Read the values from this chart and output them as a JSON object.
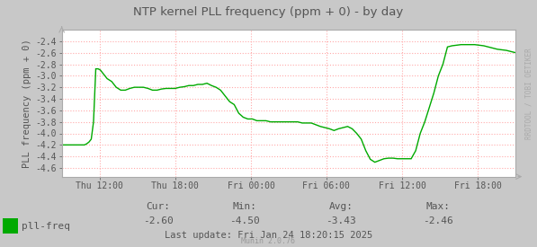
{
  "title": "NTP kernel PLL frequency (ppm + 0) - by day",
  "ylabel": "PLL frequency (ppm + 0)",
  "fig_bg_color": "#c8c8c8",
  "plot_bg_color": "#ffffff",
  "grid_color": "#ffaaaa",
  "line_color": "#00aa00",
  "text_color": "#555555",
  "tick_color": "#555555",
  "watermark_color": "#aaaaaa",
  "ylim": [
    -4.75,
    -2.2
  ],
  "yticks": [
    -4.6,
    -4.4,
    -4.2,
    -4.0,
    -3.8,
    -3.6,
    -3.4,
    -3.2,
    -3.0,
    -2.8,
    -2.6,
    -2.4
  ],
  "xtick_labels": [
    "Thu 12:00",
    "Thu 18:00",
    "Fri 00:00",
    "Fri 06:00",
    "Fri 12:00",
    "Fri 18:00"
  ],
  "xtick_positions": [
    0.083,
    0.25,
    0.417,
    0.583,
    0.75,
    0.917
  ],
  "legend_label": "pll-freq",
  "legend_color": "#00aa00",
  "cur_label": "Cur:",
  "cur_val": "-2.60",
  "min_label": "Min:",
  "min_val": "-4.50",
  "avg_label": "Avg:",
  "avg_val": "-3.43",
  "max_label": "Max:",
  "max_val": "-2.46",
  "last_update": "Last update: Fri Jan 24 18:20:15 2025",
  "munin_version": "Munin 2.0.76",
  "watermark": "RRDTOOL / TOBI OETIKER",
  "x_data": [
    0.0,
    0.005,
    0.01,
    0.015,
    0.02,
    0.025,
    0.03,
    0.035,
    0.04,
    0.045,
    0.05,
    0.055,
    0.06,
    0.065,
    0.07,
    0.075,
    0.08,
    0.085,
    0.09,
    0.095,
    0.1,
    0.11,
    0.12,
    0.13,
    0.14,
    0.15,
    0.16,
    0.17,
    0.18,
    0.19,
    0.2,
    0.21,
    0.22,
    0.23,
    0.24,
    0.25,
    0.26,
    0.27,
    0.28,
    0.29,
    0.3,
    0.31,
    0.32,
    0.33,
    0.34,
    0.35,
    0.36,
    0.37,
    0.38,
    0.39,
    0.4,
    0.41,
    0.42,
    0.43,
    0.44,
    0.45,
    0.46,
    0.47,
    0.48,
    0.49,
    0.5,
    0.51,
    0.52,
    0.53,
    0.54,
    0.55,
    0.56,
    0.57,
    0.58,
    0.59,
    0.6,
    0.61,
    0.62,
    0.63,
    0.64,
    0.65,
    0.66,
    0.67,
    0.68,
    0.69,
    0.7,
    0.71,
    0.72,
    0.73,
    0.74,
    0.75,
    0.76,
    0.77,
    0.78,
    0.79,
    0.8,
    0.81,
    0.82,
    0.83,
    0.84,
    0.85,
    0.86,
    0.87,
    0.88,
    0.89,
    0.9,
    0.91,
    0.92,
    0.93,
    0.94,
    0.95,
    0.96,
    0.97,
    0.98,
    0.99,
    1.0
  ],
  "y_data": [
    -4.2,
    -4.2,
    -4.2,
    -4.2,
    -4.2,
    -4.2,
    -4.2,
    -4.2,
    -4.2,
    -4.2,
    -4.2,
    -4.18,
    -4.15,
    -4.1,
    -3.8,
    -2.88,
    -2.88,
    -2.9,
    -2.95,
    -3.0,
    -3.05,
    -3.1,
    -3.2,
    -3.25,
    -3.25,
    -3.22,
    -3.2,
    -3.2,
    -3.2,
    -3.22,
    -3.25,
    -3.25,
    -3.23,
    -3.22,
    -3.22,
    -3.22,
    -3.2,
    -3.19,
    -3.17,
    -3.17,
    -3.15,
    -3.15,
    -3.13,
    -3.17,
    -3.2,
    -3.25,
    -3.35,
    -3.45,
    -3.5,
    -3.65,
    -3.72,
    -3.75,
    -3.75,
    -3.78,
    -3.78,
    -3.78,
    -3.8,
    -3.8,
    -3.8,
    -3.8,
    -3.8,
    -3.8,
    -3.8,
    -3.82,
    -3.82,
    -3.82,
    -3.85,
    -3.88,
    -3.9,
    -3.92,
    -3.95,
    -3.92,
    -3.9,
    -3.88,
    -3.92,
    -4.0,
    -4.1,
    -4.3,
    -4.45,
    -4.5,
    -4.47,
    -4.44,
    -4.43,
    -4.43,
    -4.44,
    -4.44,
    -4.44,
    -4.44,
    -4.3,
    -4.0,
    -3.8,
    -3.55,
    -3.3,
    -3.0,
    -2.8,
    -2.5,
    -2.48,
    -2.47,
    -2.46,
    -2.46,
    -2.46,
    -2.46,
    -2.47,
    -2.48,
    -2.5,
    -2.52,
    -2.54,
    -2.55,
    -2.56,
    -2.58,
    -2.6
  ]
}
